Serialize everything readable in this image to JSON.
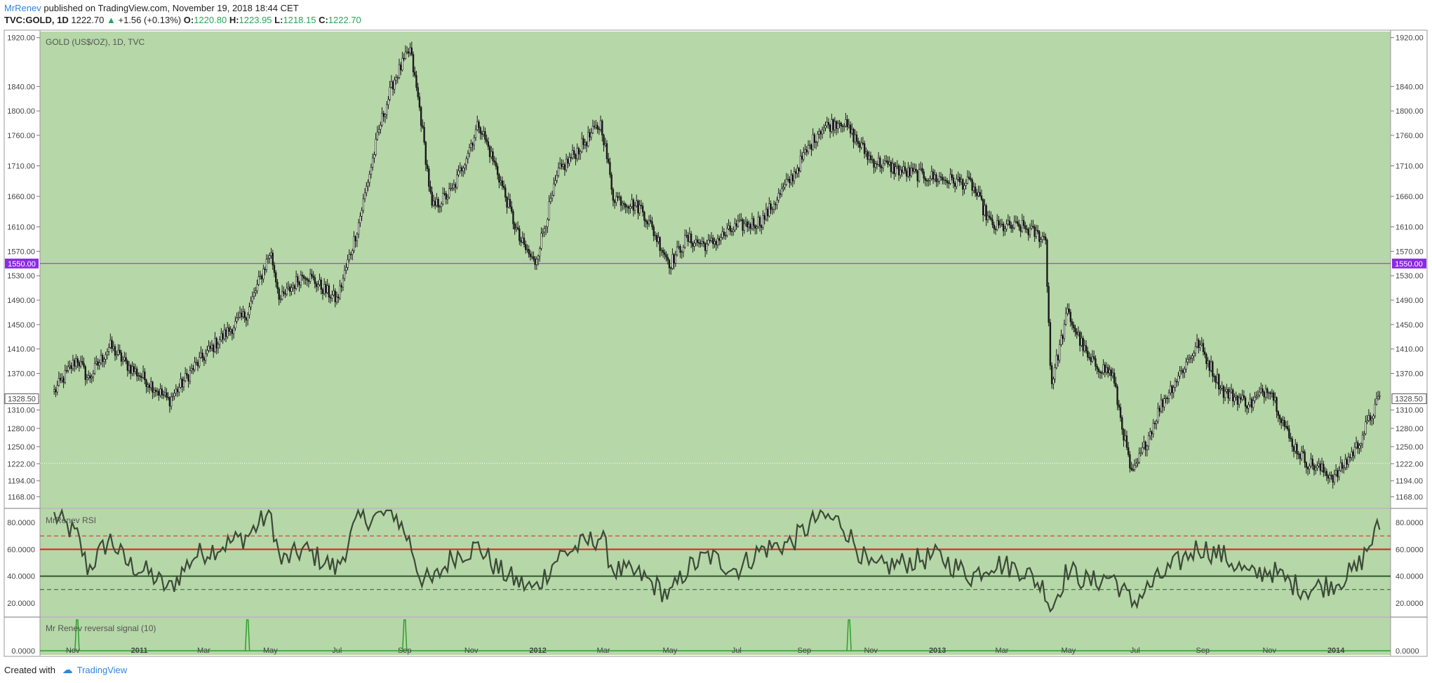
{
  "header": {
    "author": "MrRenev",
    "published_text": "published on TradingView.com, November 19, 2018 18:44 CET",
    "symbol": "TVC:GOLD, 1D",
    "last": "1222.70",
    "change_arrow": "▲",
    "change": "+1.56 (+0.13%)",
    "open_label": "O:",
    "open": "1220.80",
    "high_label": "H:",
    "high": "1223.95",
    "low_label": "L:",
    "low": "1218.15",
    "close_label": "C:",
    "close": "1222.70"
  },
  "footer": {
    "created_with": "Created with",
    "brand": "TradingView"
  },
  "colors": {
    "panel_bg": "#b6d7a8",
    "candle": "#1a1a1a",
    "hline": "#8b2be2",
    "rsi_line": "#3c4a38",
    "rsi_upper": "#e02020",
    "rsi_lower": "#2f5a2f",
    "signal": "#2ca02c"
  },
  "chart_data": [
    {
      "type": "candlestick",
      "title": "GOLD (US$/OZ), 1D, TVC",
      "y_ticks": [
        "1920.00",
        "1840.00",
        "1800.00",
        "1760.00",
        "1710.00",
        "1660.00",
        "1610.00",
        "1570.00",
        "1530.00",
        "1490.00",
        "1450.00",
        "1410.00",
        "1370.00",
        "1310.00",
        "1280.00",
        "1250.00",
        "1222.00",
        "1194.00",
        "1168.00"
      ],
      "ylim": [
        1150,
        1930
      ],
      "x_labels": [
        "Nov",
        "2011",
        "Mar",
        "May",
        "Jul",
        "Sep",
        "Nov",
        "2012",
        "Mar",
        "May",
        "Jul",
        "Sep",
        "Nov",
        "2013",
        "Mar",
        "May",
        "Jul",
        "Sep",
        "Nov",
        "2014"
      ],
      "horizontal_line": {
        "value": 1550.0,
        "label": "1550.00"
      },
      "price_marker": {
        "value": 1328.5,
        "label": "1328.50"
      },
      "last_price_line": 1222.7,
      "x": [
        "2010-10-15",
        "2010-11-05",
        "2010-11-15",
        "2010-12-05",
        "2010-12-20",
        "2011-01-10",
        "2011-01-28",
        "2011-02-20",
        "2011-03-15",
        "2011-04-10",
        "2011-05-01",
        "2011-05-10",
        "2011-06-01",
        "2011-07-01",
        "2011-07-20",
        "2011-08-10",
        "2011-08-22",
        "2011-09-06",
        "2011-09-15",
        "2011-09-26",
        "2011-10-15",
        "2011-11-08",
        "2011-11-25",
        "2011-12-15",
        "2011-12-29",
        "2012-01-20",
        "2012-02-28",
        "2012-03-10",
        "2012-04-05",
        "2012-05-01",
        "2012-05-16",
        "2012-06-05",
        "2012-07-01",
        "2012-07-24",
        "2012-08-20",
        "2012-09-15",
        "2012-10-05",
        "2012-11-01",
        "2012-12-01",
        "2013-01-01",
        "2013-02-01",
        "2013-02-20",
        "2013-03-20",
        "2013-04-10",
        "2013-04-15",
        "2013-04-30",
        "2013-05-20",
        "2013-06-10",
        "2013-06-28",
        "2013-07-25",
        "2013-08-28",
        "2013-09-20",
        "2013-10-15",
        "2013-11-01",
        "2013-11-20",
        "2013-12-05",
        "2013-12-31",
        "2014-01-20",
        "2014-02-10"
      ],
      "y": [
        1340,
        1395,
        1360,
        1415,
        1385,
        1355,
        1325,
        1380,
        1425,
        1470,
        1570,
        1490,
        1535,
        1490,
        1610,
        1780,
        1850,
        1900,
        1800,
        1640,
        1670,
        1780,
        1700,
        1590,
        1550,
        1700,
        1780,
        1660,
        1640,
        1550,
        1590,
        1580,
        1610,
        1620,
        1690,
        1770,
        1785,
        1720,
        1700,
        1690,
        1680,
        1610,
        1610,
        1590,
        1350,
        1470,
        1390,
        1370,
        1200,
        1320,
        1420,
        1340,
        1320,
        1350,
        1260,
        1225,
        1200,
        1250,
        1330
      ],
      "rsi": {
        "title": "MrRenev RSI",
        "y_ticks": [
          "80.0000",
          "60.0000",
          "40.0000",
          "20.0000"
        ],
        "ylim": [
          10,
          90
        ],
        "upper_level": 60,
        "lower_level": 40,
        "dashed_levels": [
          70,
          30
        ],
        "x": [
          "2010-10-15",
          "2010-11-05",
          "2010-11-15",
          "2010-12-05",
          "2010-12-20",
          "2011-01-10",
          "2011-01-28",
          "2011-02-20",
          "2011-03-15",
          "2011-04-10",
          "2011-05-01",
          "2011-05-10",
          "2011-06-01",
          "2011-07-01",
          "2011-07-20",
          "2011-08-10",
          "2011-08-22",
          "2011-09-06",
          "2011-09-15",
          "2011-09-26",
          "2011-10-15",
          "2011-11-08",
          "2011-11-25",
          "2011-12-15",
          "2011-12-29",
          "2012-01-20",
          "2012-02-28",
          "2012-03-10",
          "2012-04-05",
          "2012-05-01",
          "2012-05-16",
          "2012-06-05",
          "2012-07-01",
          "2012-07-24",
          "2012-08-20",
          "2012-09-15",
          "2012-10-05",
          "2012-11-01",
          "2012-12-01",
          "2013-01-01",
          "2013-02-01",
          "2013-02-20",
          "2013-03-20",
          "2013-04-10",
          "2013-04-15",
          "2013-04-30",
          "2013-05-20",
          "2013-06-10",
          "2013-06-28",
          "2013-07-25",
          "2013-08-28",
          "2013-09-20",
          "2013-10-15",
          "2013-11-01",
          "2013-11-20",
          "2013-12-05",
          "2013-12-31",
          "2014-01-20",
          "2014-02-10"
        ],
        "values": [
          85,
          70,
          45,
          68,
          50,
          42,
          30,
          55,
          62,
          70,
          88,
          50,
          60,
          45,
          82,
          85,
          88,
          65,
          40,
          35,
          55,
          62,
          45,
          35,
          30,
          55,
          70,
          45,
          40,
          25,
          45,
          55,
          45,
          60,
          65,
          85,
          80,
          45,
          50,
          55,
          40,
          50,
          45,
          30,
          15,
          45,
          35,
          40,
          20,
          40,
          62,
          55,
          40,
          45,
          35,
          30,
          35,
          45,
          78
        ]
      },
      "signal": {
        "title": "Mr Renev reversal signal (10)",
        "y_ticks": [
          "0.0000"
        ],
        "spikes_x": [
          "2010-11-05",
          "2011-04-10",
          "2011-09-01",
          "2012-10-12"
        ]
      }
    }
  ]
}
